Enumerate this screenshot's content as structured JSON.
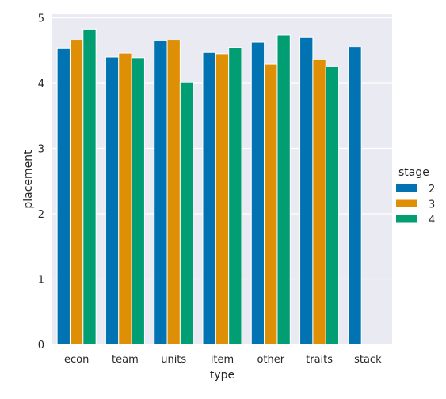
{
  "chart_data": {
    "type": "bar",
    "title": "",
    "xlabel": "type",
    "ylabel": "placement",
    "categories": [
      "econ",
      "team",
      "units",
      "item",
      "other",
      "traits",
      "stack"
    ],
    "ylim": [
      0,
      5
    ],
    "yticks": [
      0,
      1,
      2,
      3,
      4,
      5
    ],
    "grid": true,
    "legend": {
      "title": "stage",
      "position": "right"
    },
    "series": [
      {
        "name": "2",
        "color": "#0173b2",
        "values": [
          4.53,
          4.4,
          4.65,
          4.47,
          4.63,
          4.7,
          4.55
        ]
      },
      {
        "name": "3",
        "color": "#de8f05",
        "values": [
          4.66,
          4.46,
          4.66,
          4.45,
          4.29,
          4.36,
          null
        ]
      },
      {
        "name": "4",
        "color": "#029e73",
        "values": [
          4.82,
          4.39,
          4.01,
          4.54,
          4.74,
          4.25,
          null
        ]
      }
    ]
  }
}
